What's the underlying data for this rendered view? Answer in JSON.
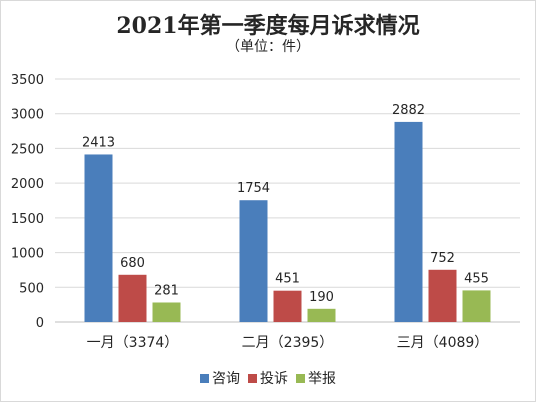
{
  "chart_data": {
    "type": "bar",
    "title": "2021年第一季度每月诉求情况",
    "subtitle": "（单位：件）",
    "categories": [
      "一月（3374）",
      "二月（2395）",
      "三月（4089）"
    ],
    "series": [
      {
        "name": "咨询",
        "color": "#4a7ebb",
        "values": [
          2413,
          1754,
          2882
        ]
      },
      {
        "name": "投诉",
        "color": "#be4b48",
        "values": [
          680,
          451,
          752
        ]
      },
      {
        "name": "举报",
        "color": "#98b954",
        "values": [
          281,
          190,
          455
        ]
      }
    ],
    "ylim": [
      0,
      3500
    ],
    "yticks": [
      0,
      500,
      1000,
      1500,
      2000,
      2500,
      3000,
      3500
    ],
    "grid": true,
    "legend_position": "bottom"
  }
}
